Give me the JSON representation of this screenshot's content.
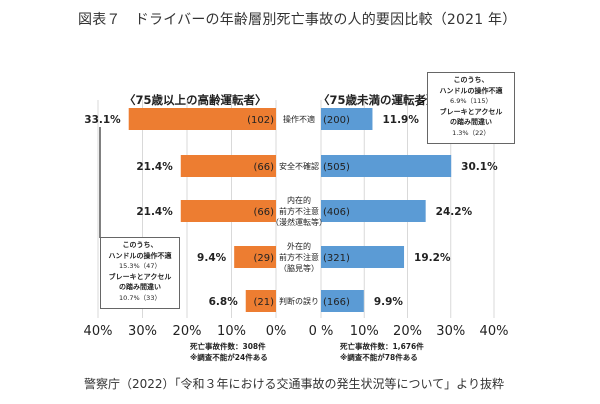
{
  "title": "図表７　ドライバーの年齢層別死亡事故の人的要因比較（2021 年）",
  "chart_data": {
    "type": "bar",
    "orientation": "horizontal-butterfly",
    "title": "図表７　ドライバーの年齢層別死亡事故の人的要因比較（2021 年）",
    "categories": [
      [
        "操作不適"
      ],
      [
        "安全不確認"
      ],
      [
        "内在的",
        "前方不注意",
        "（漫然運転等）"
      ],
      [
        "外在的",
        "前方不注意",
        "（脇見等）"
      ],
      [
        "判断の誤り"
      ]
    ],
    "series": [
      {
        "name": "〈75歳以上の高齢運転者〉",
        "side": "left",
        "color": "#ED7D31",
        "values": [
          33.1,
          21.4,
          21.4,
          9.4,
          6.8
        ],
        "value_labels": [
          "33.1%",
          "21.4%",
          "21.4%",
          "9.4%",
          "6.8%"
        ],
        "counts": [
          "(102)",
          "(66)",
          "(66)",
          "(29)",
          "(21)"
        ]
      },
      {
        "name": "〈75歳未満の運転者〉",
        "side": "right",
        "color": "#5B9BD5",
        "values": [
          11.9,
          30.1,
          24.2,
          19.2,
          9.9
        ],
        "value_labels": [
          "11.9%",
          "30.1%",
          "24.2%",
          "19.2%",
          "9.9%"
        ],
        "counts": [
          "(200)",
          "(505)",
          "(406)",
          "(321)",
          "(166)"
        ]
      }
    ],
    "xlim": [
      0,
      40
    ],
    "left_ticks": [
      "40%",
      "30%",
      "20%",
      "10%",
      "0%"
    ],
    "right_ticks": [
      "0 %",
      "10%",
      "20%",
      "30%",
      "40%"
    ],
    "tick_values": [
      0,
      10,
      20,
      30,
      40
    ],
    "grid": true
  },
  "left_panel": {
    "title": "〈75歳以上の高齢運転者〉",
    "note": [
      "このうち、",
      "ハンドルの操作不適",
      "15.3%（47）",
      "ブレーキとアクセル",
      "の踏み間違い",
      "10.7%（33）"
    ],
    "footnote": [
      "死亡事故件数：308件",
      "※調査不能が24件ある"
    ]
  },
  "right_panel": {
    "title": "〈75歳未満の運転者〉",
    "note": [
      "このうち、",
      "ハンドルの操作不適",
      "6.9%（115）",
      "ブレーキとアクセル",
      "の踏み間違い",
      "1.3%（22）"
    ],
    "footnote": [
      "死亡事故件数：1,676件",
      "※調査不能が78件ある"
    ]
  },
  "source": "警察庁（2022）「令和３年における交通事故の発生状況等について」より抜粋"
}
